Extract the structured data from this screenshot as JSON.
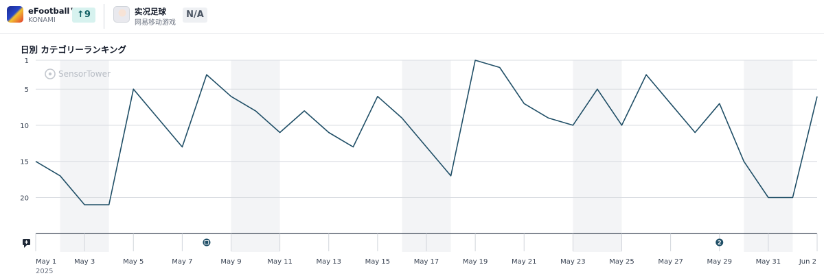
{
  "apps": [
    {
      "name": "eFootball™",
      "publisher": "KONAMI",
      "icon": "efootball-app-icon",
      "rank_change": "9",
      "rank_change_direction": "up"
    },
    {
      "name": "实况足球",
      "publisher": "网易移动游戏",
      "icon": "jikkyou-app-icon",
      "rank_change": "N/A"
    }
  ],
  "watermark": "SensorTower",
  "colors": {
    "line": "#1f4e66",
    "band": "#f3f4f6",
    "grid": "#d9dce1",
    "badge_up_bg": "#d7f2ef",
    "marker": "#1f4e66"
  },
  "chart_data": {
    "type": "line",
    "title": "日別 カテゴリーランキング",
    "y_reversed": true,
    "ylim": [
      1,
      25
    ],
    "y_ticks": [
      1,
      5,
      10,
      15,
      20
    ],
    "xlim": [
      1,
      33
    ],
    "x_ticks": [
      {
        "day": 1,
        "label": "May 1"
      },
      {
        "day": 3,
        "label": "May 3"
      },
      {
        "day": 5,
        "label": "May 5"
      },
      {
        "day": 7,
        "label": "May 7"
      },
      {
        "day": 9,
        "label": "May 9"
      },
      {
        "day": 11,
        "label": "May 11"
      },
      {
        "day": 13,
        "label": "May 13"
      },
      {
        "day": 15,
        "label": "May 15"
      },
      {
        "day": 17,
        "label": "May 17"
      },
      {
        "day": 19,
        "label": "May 19"
      },
      {
        "day": 21,
        "label": "May 21"
      },
      {
        "day": 23,
        "label": "May 23"
      },
      {
        "day": 25,
        "label": "May 25"
      },
      {
        "day": 27,
        "label": "May 27"
      },
      {
        "day": 29,
        "label": "May 29"
      },
      {
        "day": 31,
        "label": "May 31"
      },
      {
        "day": 33,
        "label": "Jun 2"
      }
    ],
    "year_label": "2025",
    "weekend_bands": [
      [
        2,
        4
      ],
      [
        9,
        11
      ],
      [
        16,
        18
      ],
      [
        23,
        25
      ],
      [
        30,
        32
      ]
    ],
    "grid": true,
    "series": [
      {
        "x": [
          1,
          2,
          3,
          4,
          5,
          6,
          7,
          8,
          9,
          10,
          11,
          12,
          13,
          14,
          15,
          16,
          17,
          18,
          19,
          20,
          21,
          22,
          23,
          24,
          25,
          26,
          27,
          28,
          29,
          30,
          31,
          32,
          33
        ],
        "values": [
          15,
          17,
          21,
          21,
          5,
          9,
          13,
          3,
          6,
          8,
          11,
          8,
          11,
          13,
          6,
          9,
          13,
          17,
          1,
          2,
          7,
          9,
          10,
          5,
          10,
          3,
          7,
          11,
          7,
          15,
          20,
          20,
          6
        ]
      }
    ],
    "event_markers": [
      {
        "day": 8,
        "icon": "calendar-event-icon"
      },
      {
        "day": 29,
        "label": "2"
      }
    ],
    "annotation_icon": "comment-plus-icon"
  }
}
